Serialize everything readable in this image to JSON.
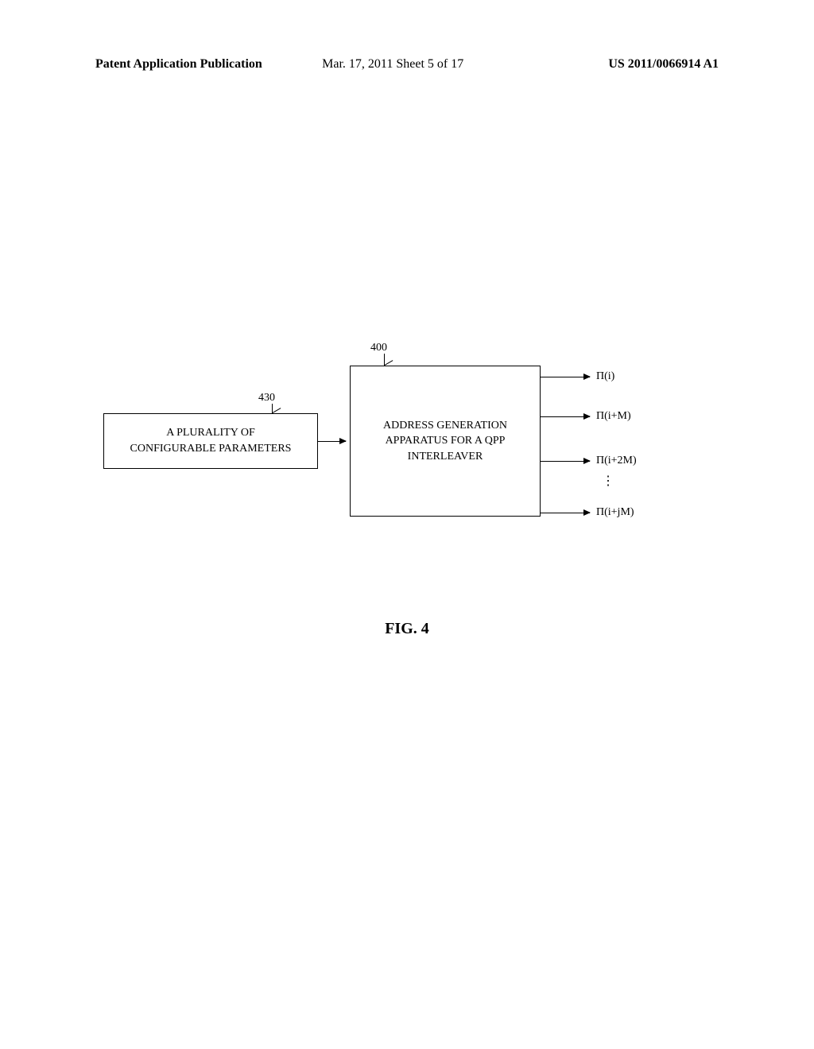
{
  "header": {
    "left": "Patent Application Publication",
    "center": "Mar. 17, 2011  Sheet 5 of 17",
    "right": "US 2011/0066914 A1"
  },
  "diagram": {
    "ref_left": "430",
    "ref_right": "400",
    "box_left_text": "A PLURALITY OF\nCONFIGURABLE PARAMETERS",
    "box_right_text": "ADDRESS GENERATION\nAPPARATUS FOR A QPP\nINTERLEAVER",
    "outputs": {
      "o1": "Π(i)",
      "o2": "Π(i+M)",
      "o3": "Π(i+2M)",
      "o4": "Π(i+jM)"
    },
    "vdots": "⋮"
  },
  "figure_label": "FIG. 4"
}
